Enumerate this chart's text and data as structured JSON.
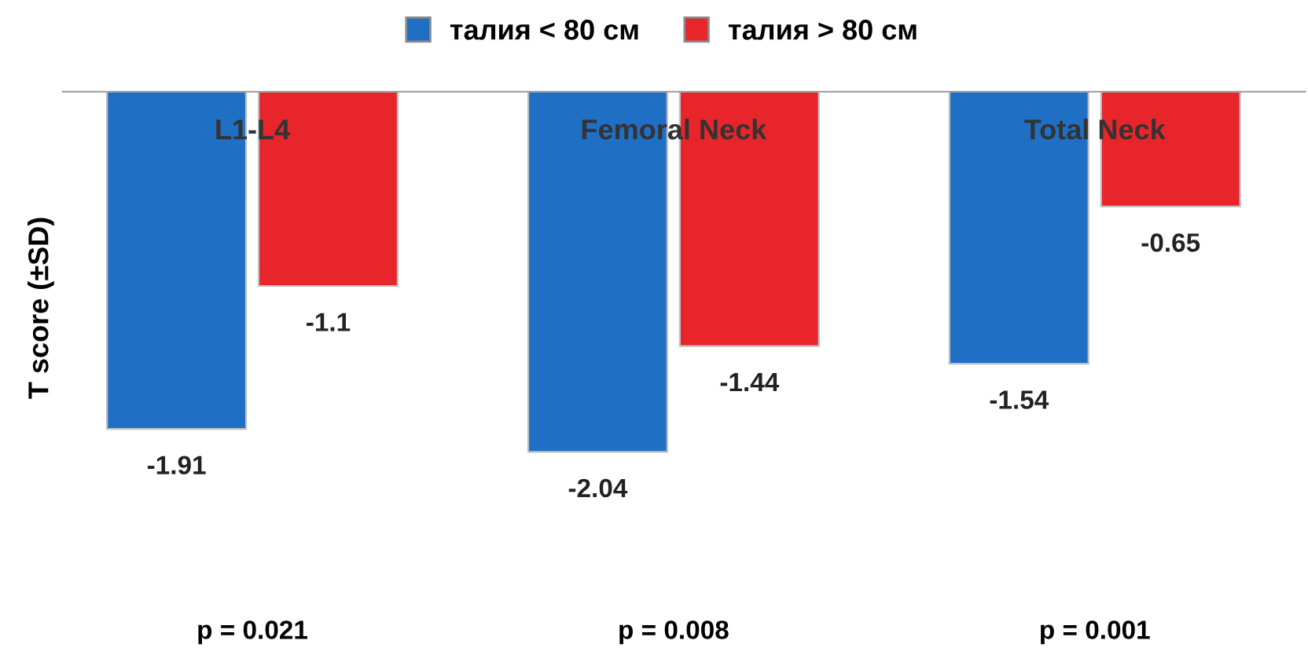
{
  "chart_data": {
    "type": "bar",
    "ylabel": "T score (±SD)",
    "categories": [
      "L1-L4",
      "Femoral Neck",
      "Total Neck"
    ],
    "series": [
      {
        "name": "талия < 80 см",
        "color": "#1f6fc5",
        "values": [
          -1.91,
          -2.04,
          -1.54
        ]
      },
      {
        "name": "талия > 80 см",
        "color": "#e8252a",
        "values": [
          -1.1,
          -1.44,
          -0.65
        ]
      }
    ],
    "data_labels": true,
    "legend": "top",
    "grid": false,
    "annotations": [
      "p = 0.021",
      "p = 0.008",
      "p = 0.001"
    ]
  }
}
